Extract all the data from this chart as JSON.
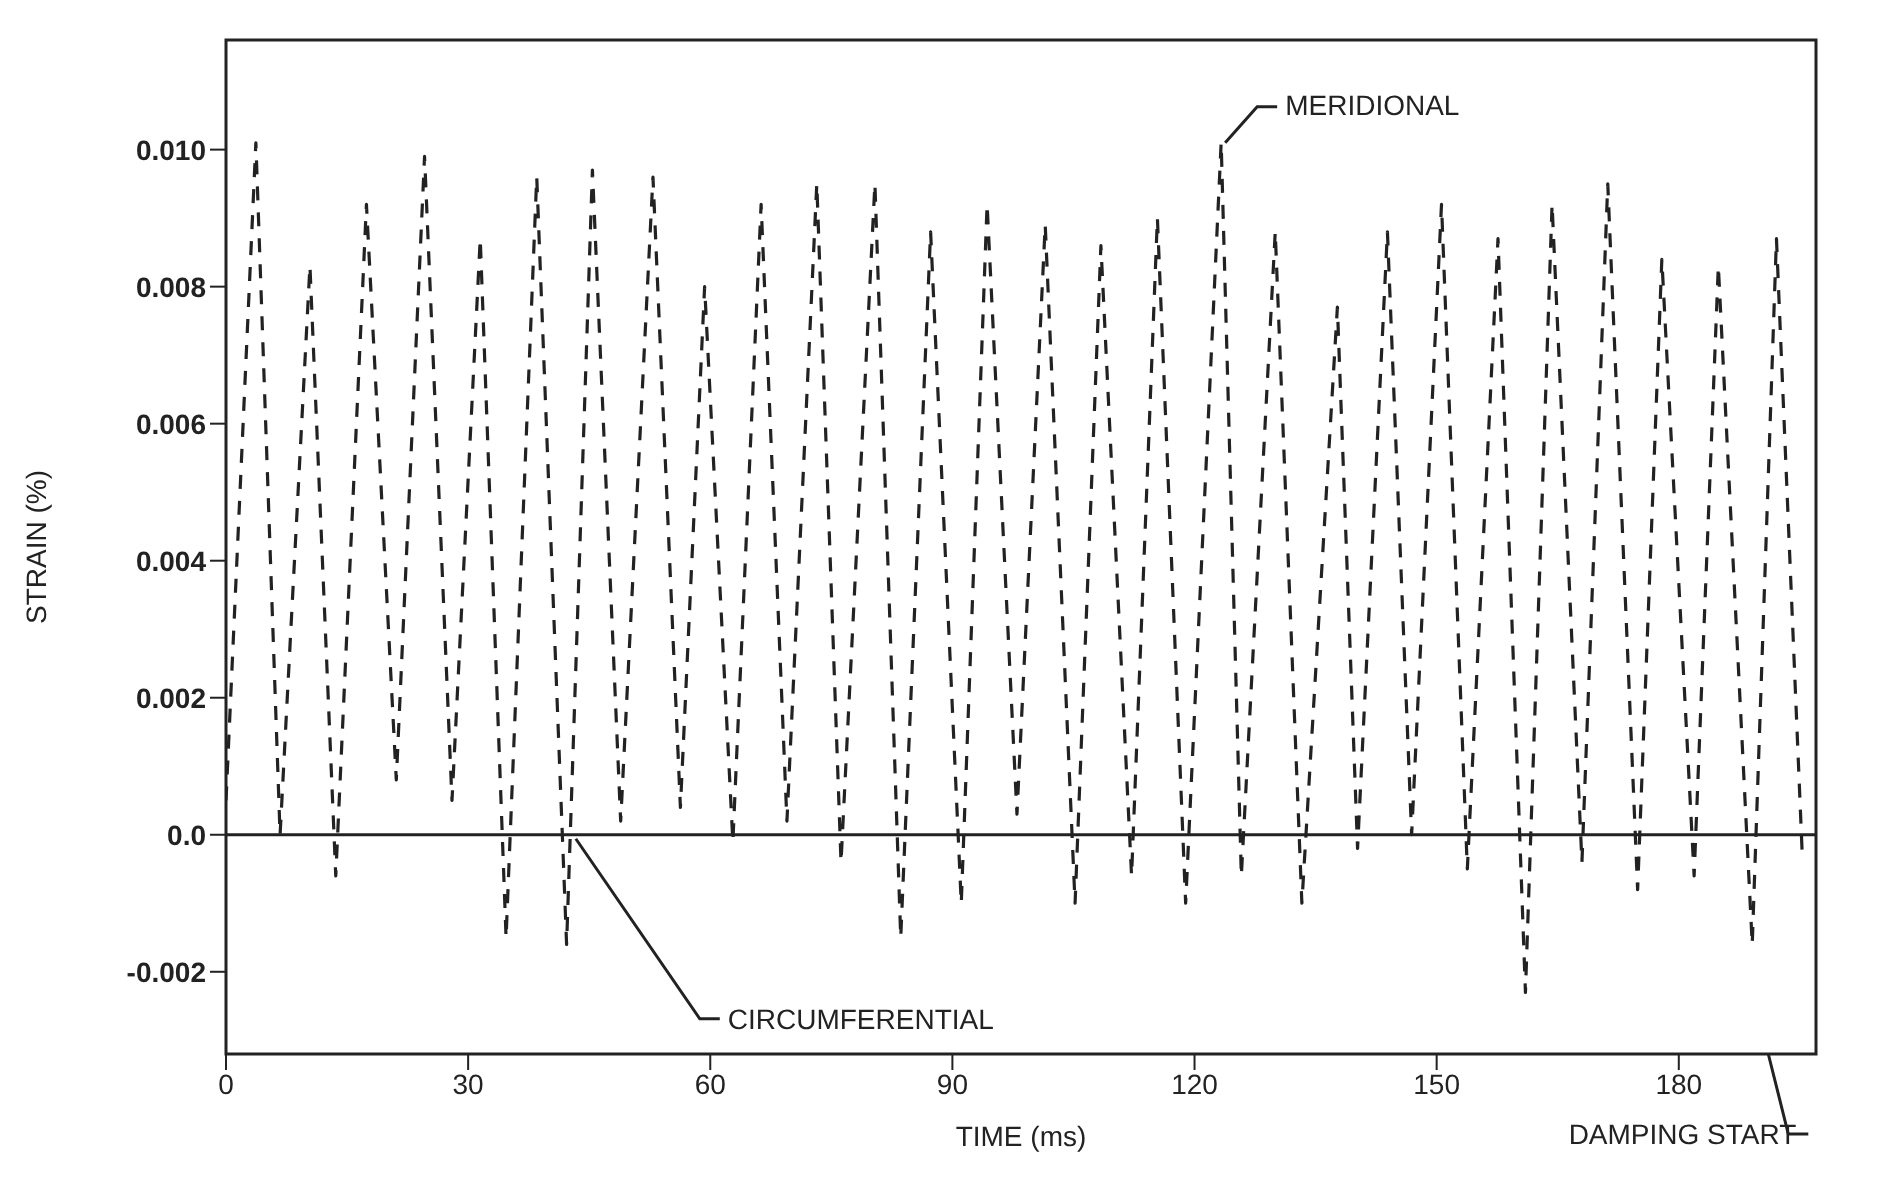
{
  "chart_data": {
    "type": "line",
    "xlabel": "TIME (ms)",
    "ylabel": "STRAIN (%)",
    "xlim": [
      0,
      197
    ],
    "xticks": [
      0,
      30,
      60,
      90,
      120,
      150,
      180
    ],
    "ylim": [
      -0.0032,
      0.0116
    ],
    "yticks": [
      {
        "value": -0.002,
        "label": "-0.002"
      },
      {
        "value": 0,
        "label": "0.0"
      },
      0.002,
      0.004,
      0.006,
      0.008,
      {
        "value": 0.01,
        "label": "0.010"
      }
    ],
    "marker": "none",
    "series": [
      {
        "name": "MERIDIONAL",
        "color": "#222222",
        "line_style": "dashed",
        "x": [
          0,
          3.7,
          6.7,
          10.4,
          13.6,
          17.4,
          21.1,
          24.6,
          28.0,
          31.5,
          34.7,
          38.5,
          42.2,
          45.4,
          48.9,
          52.9,
          56.3,
          59.3,
          62.8,
          66.3,
          69.5,
          73.2,
          76.2,
          80.4,
          83.6,
          87.3,
          91.1,
          94.3,
          98.0,
          101.5,
          105.2,
          108.4,
          112.2,
          115.4,
          118.9,
          123.3,
          125.8,
          130.0,
          133.3,
          137.7,
          140.2,
          143.9,
          146.9,
          150.6,
          153.8,
          157.6,
          161.0,
          164.3,
          168.0,
          171.2,
          174.9,
          177.9,
          181.9,
          184.9,
          189.1,
          192.1,
          195.3
        ],
        "values": [
          0.0005,
          0.0101,
          0.0,
          0.0083,
          -0.0006,
          0.0092,
          0.0008,
          0.0099,
          0.0005,
          0.0087,
          -0.0015,
          0.0096,
          -0.0016,
          0.0097,
          0.0002,
          0.0096,
          0.0004,
          0.008,
          -0.0001,
          0.0092,
          0.0002,
          0.0095,
          -0.0004,
          0.0095,
          -0.0015,
          0.0088,
          -0.001,
          0.0092,
          0.0003,
          0.0089,
          -0.001,
          0.0086,
          -0.0006,
          0.009,
          -0.001,
          0.0101,
          -0.0006,
          0.0088,
          -0.001,
          0.0077,
          -0.0002,
          0.0088,
          0.0,
          0.0092,
          -0.0005,
          0.0087,
          -0.0023,
          0.0092,
          -0.0004,
          0.0095,
          -0.0008,
          0.0084,
          -0.0006,
          0.0083,
          -0.0016,
          0.0087,
          -0.0003
        ]
      },
      {
        "name": "CIRCUMFERENTIAL",
        "color": "#222222",
        "line_style": "solid",
        "x": [
          0,
          197
        ],
        "values": [
          0,
          0
        ]
      }
    ],
    "annotations": [
      "DAMPING START"
    ]
  }
}
